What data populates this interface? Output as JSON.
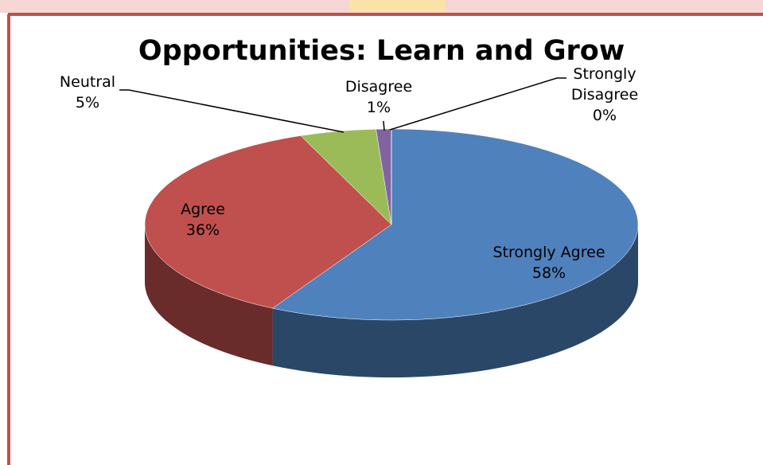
{
  "chart_data": {
    "type": "pie3d",
    "title": "Opportunities: Learn and Grow",
    "categories": [
      "Strongly Agree",
      "Agree",
      "Neutral",
      "Disagree",
      "Strongly Disagree"
    ],
    "values": [
      58,
      36,
      5,
      1,
      0
    ],
    "value_labels": [
      "58%",
      "36%",
      "5%",
      "1%",
      "0%"
    ],
    "colors": [
      "#4f81bd",
      "#c0504d",
      "#9bbb59",
      "#8064a2",
      "#4bacc6"
    ]
  }
}
